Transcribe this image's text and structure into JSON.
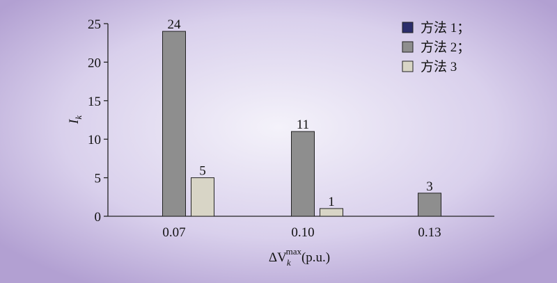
{
  "chart_data": {
    "type": "bar",
    "y_label": {
      "base": "I",
      "sub": "k"
    },
    "x_label": {
      "base": "ΔV",
      "sub": "k",
      "sup": "max",
      "unit": "(p.u.)"
    },
    "categories": [
      "0.07",
      "0.10",
      "0.13"
    ],
    "series": [
      {
        "name": "方法 1；",
        "color": "#2b2d6b",
        "values": [
          0,
          0,
          0
        ]
      },
      {
        "name": "方法 2；",
        "color": "#8e8e8e",
        "values": [
          24,
          11,
          3
        ]
      },
      {
        "name": "方法 3",
        "color": "#d8d5c6",
        "values": [
          5,
          1,
          0
        ]
      }
    ],
    "ylim": [
      0,
      25
    ],
    "yticks": [
      0,
      5,
      10,
      15,
      20,
      25
    ],
    "legend": "top-right",
    "grid": false
  }
}
